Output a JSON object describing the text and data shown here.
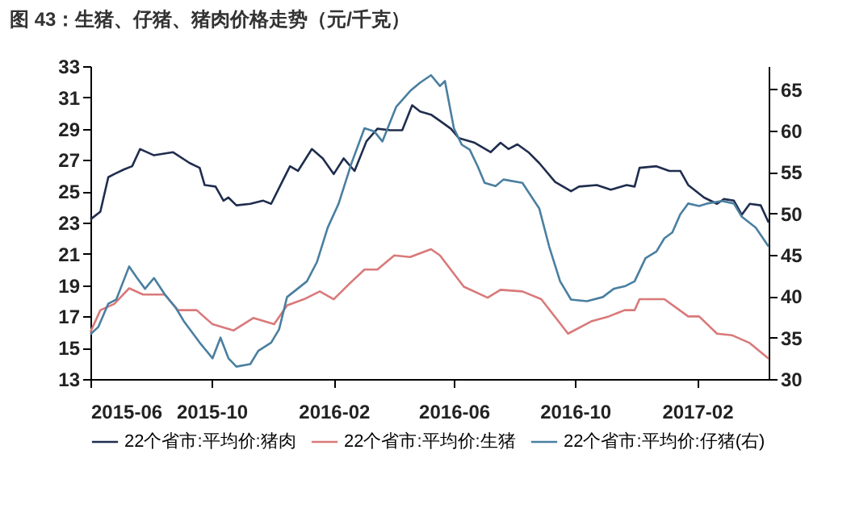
{
  "chart_data": {
    "type": "line",
    "title": "图 43：生猪、仔猪、猪肉价格走势（元/千克）",
    "xlim": [
      "2015-06-01",
      "2017-04-14"
    ],
    "xticks": [
      "2015-06",
      "2015-10",
      "2016-02",
      "2016-06",
      "2016-10",
      "2017-02"
    ],
    "ylim": [
      13,
      33
    ],
    "yticks": [
      13,
      15,
      17,
      19,
      21,
      23,
      25,
      27,
      29,
      31,
      33
    ],
    "y2lim": [
      30,
      67.8
    ],
    "y2ticks": [
      30,
      35,
      40,
      45,
      50,
      55,
      60,
      65
    ],
    "grid": false,
    "legend": "bottom",
    "series": [
      {
        "name": "22个省市:平均价:猪肉",
        "color": "#1f2d4e",
        "x": [
          "2015-06-01",
          "2015-06-11",
          "2015-06-19",
          "2015-06-25",
          "2015-07-05",
          "2015-07-13",
          "2015-07-21",
          "2015-08-04",
          "2015-08-23",
          "2015-09-09",
          "2015-09-19",
          "2015-09-24",
          "2015-10-05",
          "2015-10-13",
          "2015-10-18",
          "2015-10-26",
          "2015-11-09",
          "2015-11-22",
          "2015-11-30",
          "2015-12-11",
          "2015-12-19",
          "2015-12-27",
          "2016-01-10",
          "2016-01-21",
          "2016-02-01",
          "2016-02-11",
          "2016-02-22",
          "2016-03-05",
          "2016-03-16",
          "2016-03-29",
          "2016-04-10",
          "2016-04-20",
          "2016-04-28",
          "2016-05-09",
          "2016-05-18",
          "2016-05-29",
          "2016-06-06",
          "2016-06-22",
          "2016-07-08",
          "2016-07-18",
          "2016-07-26",
          "2016-08-04",
          "2016-08-15",
          "2016-08-26",
          "2016-09-11",
          "2016-09-27",
          "2016-10-05",
          "2016-10-23",
          "2016-11-06",
          "2016-11-22",
          "2016-11-30",
          "2016-12-05",
          "2016-12-22",
          "2017-01-04",
          "2017-01-15",
          "2017-01-23",
          "2017-02-08",
          "2017-02-21",
          "2017-02-28",
          "2017-03-10",
          "2017-03-18",
          "2017-03-26",
          "2017-04-06",
          "2017-04-14"
        ],
        "values": [
          23.2,
          23.7,
          25.9,
          26.1,
          26.4,
          26.6,
          27.7,
          27.3,
          27.5,
          26.8,
          26.5,
          25.4,
          25.3,
          24.4,
          24.6,
          24.1,
          24.2,
          24.4,
          24.2,
          25.6,
          26.6,
          26.3,
          27.7,
          27.1,
          26.1,
          27.1,
          26.3,
          28.2,
          29.0,
          28.9,
          28.9,
          30.5,
          30.1,
          29.9,
          29.5,
          29.0,
          28.4,
          28.1,
          27.5,
          28.1,
          27.7,
          28.0,
          27.5,
          26.8,
          25.6,
          25.0,
          25.3,
          25.4,
          25.1,
          25.4,
          25.3,
          26.5,
          26.6,
          26.3,
          26.3,
          25.4,
          24.6,
          24.2,
          24.5,
          24.4,
          23.5,
          24.2,
          24.1,
          23.0
        ]
      },
      {
        "name": "22个省市:平均价:生猪",
        "color": "#d9797a",
        "x": [
          "2015-06-01",
          "2015-06-11",
          "2015-06-25",
          "2015-07-10",
          "2015-07-24",
          "2015-08-15",
          "2015-08-28",
          "2015-09-16",
          "2015-10-02",
          "2015-10-23",
          "2015-11-12",
          "2015-12-03",
          "2015-12-16",
          "2016-01-02",
          "2016-01-18",
          "2016-02-01",
          "2016-02-17",
          "2016-03-03",
          "2016-03-16",
          "2016-04-02",
          "2016-04-18",
          "2016-05-09",
          "2016-05-18",
          "2016-06-11",
          "2016-07-05",
          "2016-07-18",
          "2016-08-09",
          "2016-08-28",
          "2016-09-24",
          "2016-10-18",
          "2016-11-04",
          "2016-11-20",
          "2016-11-30",
          "2016-12-05",
          "2016-12-30",
          "2017-01-23",
          "2017-02-03",
          "2017-02-21",
          "2017-03-08",
          "2017-03-26",
          "2017-04-14"
        ],
        "values": [
          16.0,
          17.4,
          17.8,
          18.8,
          18.4,
          18.4,
          17.4,
          17.4,
          16.5,
          16.1,
          16.9,
          16.5,
          17.7,
          18.1,
          18.6,
          18.1,
          19.1,
          20.0,
          20.0,
          20.9,
          20.8,
          21.3,
          20.9,
          18.9,
          18.2,
          18.7,
          18.6,
          18.1,
          15.9,
          16.7,
          17.0,
          17.4,
          17.4,
          18.1,
          18.1,
          17.0,
          17.0,
          15.9,
          15.8,
          15.3,
          14.3
        ]
      },
      {
        "name": "22个省市:平均价:仔猪(右)",
        "color": "#4a7fa0",
        "axis": "y2",
        "x": [
          "2015-06-01",
          "2015-06-09",
          "2015-06-19",
          "2015-06-27",
          "2015-07-10",
          "2015-07-18",
          "2015-07-26",
          "2015-08-04",
          "2015-08-15",
          "2015-08-26",
          "2015-09-03",
          "2015-09-19",
          "2015-10-02",
          "2015-10-10",
          "2015-10-18",
          "2015-10-26",
          "2015-11-09",
          "2015-11-17",
          "2015-11-30",
          "2015-12-08",
          "2015-12-16",
          "2016-01-05",
          "2016-01-15",
          "2016-01-26",
          "2016-02-06",
          "2016-02-19",
          "2016-03-03",
          "2016-03-13",
          "2016-03-21",
          "2016-04-04",
          "2016-04-18",
          "2016-04-28",
          "2016-05-09",
          "2016-05-18",
          "2016-05-23",
          "2016-06-01",
          "2016-06-09",
          "2016-06-17",
          "2016-06-25",
          "2016-07-02",
          "2016-07-13",
          "2016-07-21",
          "2016-08-09",
          "2016-08-26",
          "2016-09-05",
          "2016-09-16",
          "2016-09-27",
          "2016-10-13",
          "2016-10-29",
          "2016-11-09",
          "2016-11-20",
          "2016-11-30",
          "2016-12-11",
          "2016-12-22",
          "2016-12-30",
          "2017-01-07",
          "2017-01-15",
          "2017-01-23",
          "2017-02-03",
          "2017-02-11",
          "2017-02-26",
          "2017-03-10",
          "2017-03-18",
          "2017-04-01",
          "2017-04-14"
        ],
        "values": [
          35.4,
          36.3,
          39.1,
          39.6,
          43.6,
          42.2,
          40.9,
          42.2,
          40.2,
          38.6,
          37.0,
          34.4,
          32.5,
          35.0,
          32.5,
          31.5,
          31.8,
          33.4,
          34.4,
          36.0,
          39.9,
          41.8,
          44.1,
          48.3,
          51.2,
          56.1,
          60.3,
          59.9,
          58.7,
          62.9,
          64.8,
          65.8,
          66.7,
          65.4,
          66.0,
          60.3,
          58.3,
          57.7,
          55.7,
          53.7,
          53.3,
          54.1,
          53.7,
          50.6,
          46.0,
          41.8,
          39.6,
          39.4,
          39.9,
          40.9,
          41.2,
          41.8,
          44.6,
          45.4,
          47.0,
          47.7,
          49.9,
          51.2,
          50.9,
          51.2,
          51.5,
          51.2,
          49.6,
          48.3,
          46.0
        ]
      }
    ]
  }
}
